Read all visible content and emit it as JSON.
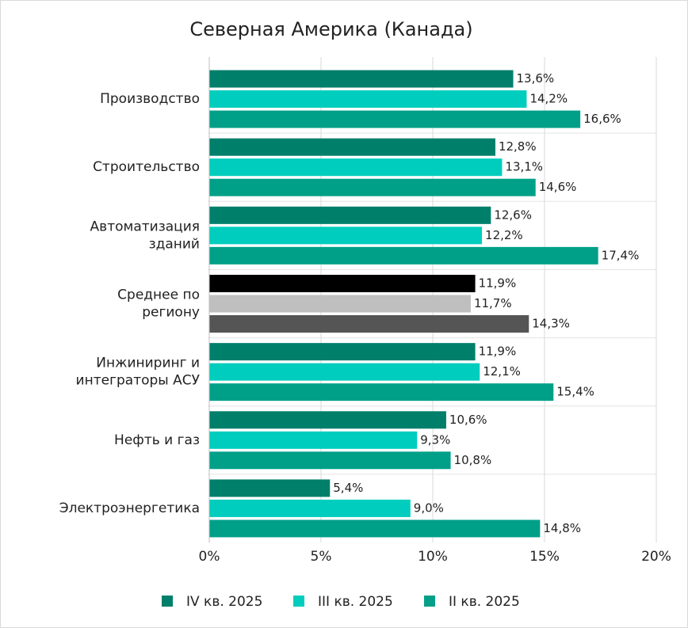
{
  "chart_data": {
    "type": "hbar",
    "title": "Северная Америка (Канада)",
    "categories": [
      "Производство",
      "Строительство",
      "Автоматизация\nзданий",
      "Среднее по\nрегиону",
      "Инжиниринг и\nинтеграторы АСУ",
      "Нефть и газ",
      "Электроэнергетика"
    ],
    "series": [
      {
        "name": "IV кв. 2025",
        "color": "#007f6a",
        "colors": [
          "#007f6a",
          "#007f6a",
          "#007f6a",
          "#000000",
          "#007f6a",
          "#007f6a",
          "#007f6a"
        ],
        "values": [
          13.6,
          12.8,
          12.6,
          11.9,
          11.9,
          10.6,
          5.4
        ],
        "value_labels": [
          "13,6%",
          "12,8%",
          "12,6%",
          "11,9%",
          "11,9%",
          "10,6%",
          "5,4%"
        ]
      },
      {
        "name": "III кв. 2025",
        "color": "#00cdbd",
        "colors": [
          "#00cdbd",
          "#00cdbd",
          "#00cdbd",
          "#bfbfbf",
          "#00cdbd",
          "#00cdbd",
          "#00cdbd"
        ],
        "values": [
          14.2,
          13.1,
          12.2,
          11.7,
          12.1,
          9.3,
          9.0
        ],
        "value_labels": [
          "14,2%",
          "13,1%",
          "12,2%",
          "11,7%",
          "12,1%",
          "9,3%",
          "9,0%"
        ]
      },
      {
        "name": "II кв. 2025",
        "color": "#00a088",
        "colors": [
          "#00a088",
          "#00a088",
          "#00a088",
          "#555555",
          "#00a088",
          "#00a088",
          "#00a088"
        ],
        "values": [
          16.6,
          14.6,
          17.4,
          14.3,
          15.4,
          10.8,
          14.8
        ],
        "value_labels": [
          "16,6%",
          "14,6%",
          "17,4%",
          "14,3%",
          "15,4%",
          "10,8%",
          "14,8%"
        ]
      }
    ],
    "xlim": [
      0,
      20
    ],
    "xticks": [
      {
        "value": 0,
        "label": "0%"
      },
      {
        "value": 5,
        "label": "5%"
      },
      {
        "value": 10,
        "label": "10%"
      },
      {
        "value": 15,
        "label": "15%"
      },
      {
        "value": 20,
        "label": "20%"
      }
    ],
    "grid": true,
    "legend": "bottom"
  }
}
